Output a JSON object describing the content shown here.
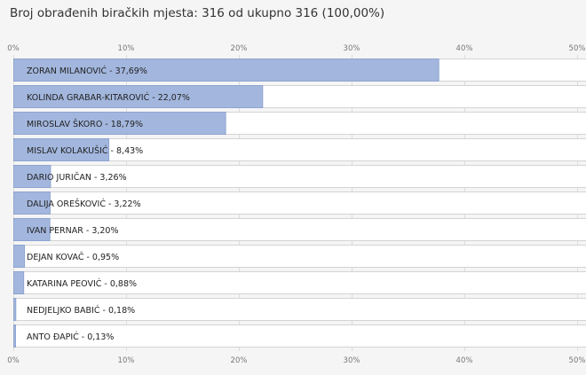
{
  "header": {
    "title": "Broj obrađenih biračkih mjesta: 316 od ukupno 316 (100,00%)"
  },
  "colors": {
    "bar_fill": "#a3b7de",
    "bar_stroke": "#8ea4d0",
    "row_bg": "#ffffff",
    "row_border": "#d4d4d4",
    "grid": "#dcdcdc"
  },
  "chart_data": {
    "type": "bar",
    "orientation": "horizontal",
    "title": "",
    "xlabel": "",
    "ylabel": "",
    "xlim": [
      0,
      50
    ],
    "grid": true,
    "tick_values": [
      0,
      10,
      20,
      30,
      40,
      50
    ],
    "tick_labels": [
      "0%",
      "10%",
      "20%",
      "30%",
      "40%",
      "50%"
    ],
    "categories": [
      "ZORAN MILANOVIĆ",
      "KOLINDA GRABAR-KITAROVIĆ",
      "MIROSLAV ŠKORO",
      "MISLAV KOLAKUŠIĆ",
      "DARIO JURIČAN",
      "DALIJA OREŠKOVIĆ",
      "IVAN PERNAR",
      "DEJAN KOVAČ",
      "KATARINA PEOVIĆ",
      "NEDJELJKO BABIĆ",
      "ANTO ĐAPIĆ"
    ],
    "values": [
      37.69,
      22.07,
      18.79,
      8.43,
      3.26,
      3.22,
      3.2,
      0.95,
      0.88,
      0.18,
      0.13
    ],
    "value_labels": [
      "37,69%",
      "22,07%",
      "18,79%",
      "8,43%",
      "3,26%",
      "3,22%",
      "3,20%",
      "0,95%",
      "0,88%",
      "0,18%",
      "0,13%"
    ]
  }
}
